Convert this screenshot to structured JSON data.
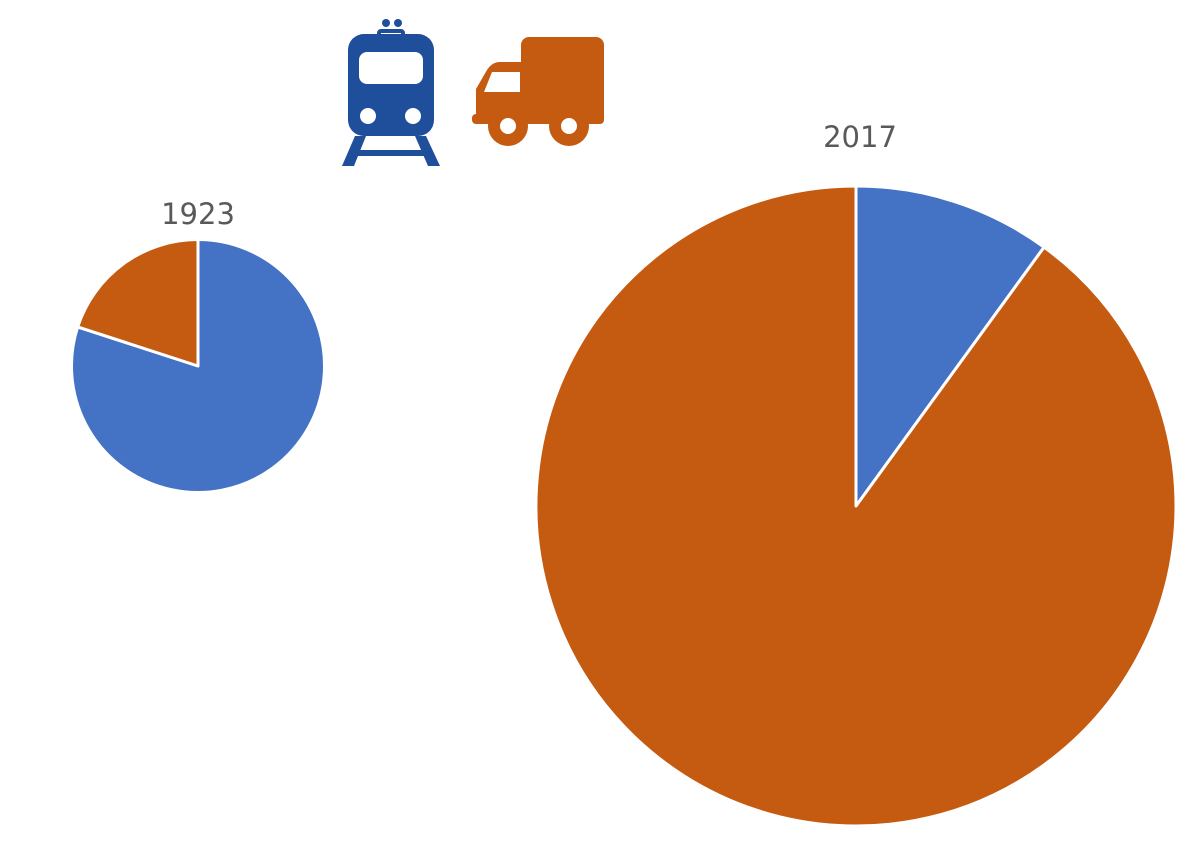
{
  "legend_icons": [
    {
      "icon": "train-icon",
      "series": "rail",
      "color": "#1F4E9B"
    },
    {
      "icon": "truck-icon",
      "series": "road",
      "color": "#C55A11"
    }
  ],
  "colors": {
    "rail": "#4472C4",
    "road": "#C55A11",
    "train_icon": "#1F4E9B",
    "truck_icon": "#C55A11",
    "title_text": "#595959"
  },
  "chart_data": [
    {
      "type": "pie",
      "title": "1923",
      "start_angle_deg": 0,
      "direction": "clockwise",
      "relative_total": 1,
      "slices": [
        {
          "key": "rail",
          "value": 0.8,
          "color": "#4472C4"
        },
        {
          "key": "road",
          "value": 0.2,
          "color": "#C55A11"
        }
      ]
    },
    {
      "type": "pie",
      "title": "2017",
      "start_angle_deg": 0,
      "direction": "clockwise",
      "relative_total": 6.4,
      "slices": [
        {
          "key": "rail",
          "value": 0.1,
          "color": "#4472C4"
        },
        {
          "key": "road",
          "value": 0.9,
          "color": "#C55A11"
        }
      ]
    }
  ]
}
